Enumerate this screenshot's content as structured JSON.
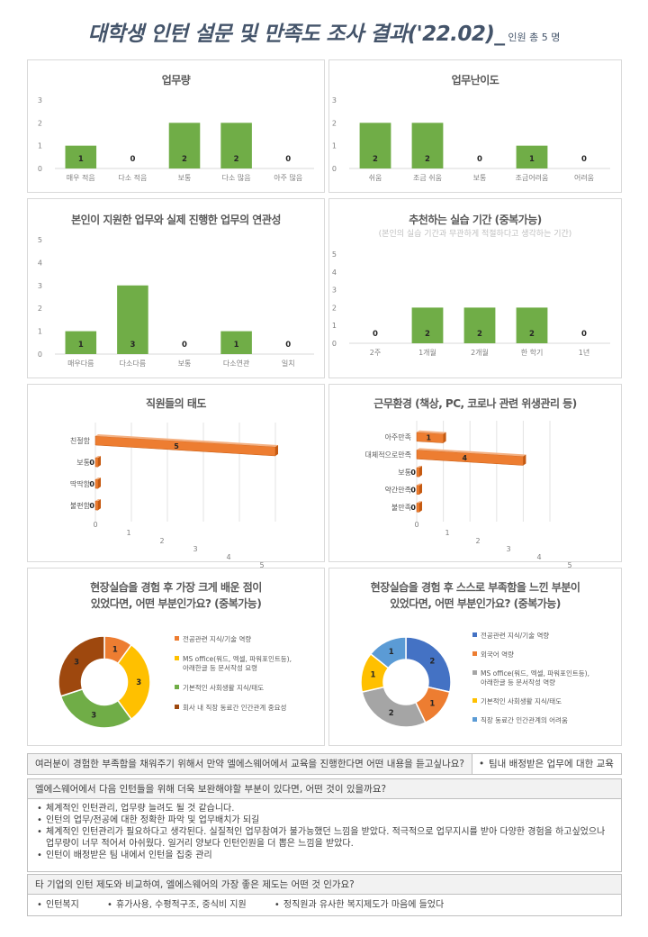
{
  "header": {
    "title": "대학생 인턴 설문 및 만족도 조사 결과('22.02)_",
    "subtitle": "인원 총 5 명"
  },
  "colors": {
    "green": "#70ad47",
    "orange": "#ed7d31",
    "gold": "#ffc000",
    "brown": "#9e480e",
    "blue": "#4472c4",
    "gray": "#a5a5a5",
    "lightblue": "#5b9bd5"
  },
  "chart_data": [
    {
      "id": "workload",
      "type": "bar",
      "title": "업무량",
      "categories": [
        "매우 적음",
        "다소 적음",
        "보통",
        "다소 많음",
        "아주 많음"
      ],
      "values": [
        1,
        0,
        2,
        2,
        0
      ],
      "ylim": [
        0,
        3
      ],
      "grid": false
    },
    {
      "id": "difficulty",
      "type": "bar",
      "title": "업무난이도",
      "categories": [
        "쉬움",
        "조금 쉬움",
        "보통",
        "조금어려움",
        "어려움"
      ],
      "values": [
        2,
        2,
        0,
        1,
        0
      ],
      "ylim": [
        0,
        3
      ],
      "grid": false
    },
    {
      "id": "relevance",
      "type": "bar",
      "title": "본인이 지원한 업무와 실제 진행한 업무의 연관성",
      "categories": [
        "매우다름",
        "다소다름",
        "보통",
        "다소연관",
        "일치"
      ],
      "values": [
        1,
        3,
        0,
        1,
        0
      ],
      "ylim": [
        0,
        5
      ],
      "grid": false
    },
    {
      "id": "period",
      "type": "bar",
      "title": "추천하는 실습 기간 (중복가능)",
      "subtitle": "(본인의 실습 기간과 무관하게 적절하다고 생각하는 기간)",
      "categories": [
        "2주",
        "1개월",
        "2개월",
        "한 학기",
        "1년"
      ],
      "values": [
        0,
        2,
        2,
        2,
        0
      ],
      "ylim": [
        0,
        5
      ],
      "grid": false
    },
    {
      "id": "attitude",
      "type": "bar",
      "orientation": "horizontal",
      "title": "직원들의 태도",
      "categories": [
        "친절함",
        "보통",
        "딱딱함",
        "불편함"
      ],
      "values": [
        5,
        0,
        0,
        0
      ],
      "xlim": [
        0,
        5
      ],
      "ticks": [
        "0",
        "1",
        "2",
        "3",
        "4",
        "5"
      ]
    },
    {
      "id": "environment",
      "type": "bar",
      "orientation": "horizontal",
      "title": "근무환경 (책상, PC, 코로나 관련 위생관리 등)",
      "categories": [
        "아주만족",
        "대체적으로만족",
        "보통",
        "약간만족",
        "불만족"
      ],
      "values": [
        1,
        4,
        0,
        0,
        0
      ],
      "xlim": [
        0,
        5
      ],
      "ticks": [
        "0",
        "1",
        "2",
        "3",
        "4",
        "5"
      ]
    },
    {
      "id": "learned",
      "type": "pie",
      "title_lines": [
        "현장실습을 경험 후 가장 크게 배운 점이",
        "있었다면, 어떤 부분인가요? (중복가능)"
      ],
      "labels": [
        "전공관련 지식/기술 역량",
        "MS office(워드, 엑셀, 파워포인트등), 아래한글 등 문서작성 요령",
        "기본적인 사회생활 지식/태도",
        "회사 내 직장 동료간 인간관계 중요성"
      ],
      "legend_lines": [
        [
          "전공관련 지식/기술 역량"
        ],
        [
          "MS office(워드, 엑셀, 파워포인트등),",
          "아래한글 등 문서작성 요령"
        ],
        [
          "기본적인 사회생활 지식/태도"
        ],
        [
          "회사 내 직장 동료간 인간관계 중요성"
        ]
      ],
      "values": [
        1,
        3,
        3,
        3
      ],
      "colors": [
        "#ed7d31",
        "#ffc000",
        "#70ad47",
        "#9e480e"
      ],
      "legend": "right"
    },
    {
      "id": "lacking",
      "type": "pie",
      "title_lines": [
        "현장실습을 경험 후 스스로 부족함을 느낀 부분이",
        "있었다면, 어떤 부분인가요? (중복가능)"
      ],
      "labels": [
        "전공관련 지식/기술 역량",
        "외국어 역량",
        "MS office(워드, 엑셀, 파워포인트등), 아래한글 등 문서작성 역량",
        "기본적인 사회생활 지식/태도",
        "직장 동료간 인간관계의 어려움"
      ],
      "legend_lines": [
        [
          "전공관련 지식/기술 역량"
        ],
        [
          "외국어 역량"
        ],
        [
          "MS office(워드, 엑셀, 파워포인트등),",
          "아래한글 등 문서작성 역량"
        ],
        [
          "기본적인 사회생활 지식/태도"
        ],
        [
          "직장 동료간 인간관계의 어려움"
        ]
      ],
      "values": [
        2,
        1,
        2,
        1,
        1
      ],
      "colors": [
        "#4472c4",
        "#ed7d31",
        "#a5a5a5",
        "#ffc000",
        "#5b9bd5"
      ],
      "legend": "right"
    }
  ],
  "questions": {
    "q1": {
      "question": "여러분이 경험한 부족함을 채워주기 위해서 만약 엘에스웨어에서 교육을 진행한다면 어떤 내용을 듣고싶나요?",
      "answer": "팀내 배정받은 업무에 대한 교육"
    },
    "q2": {
      "question": "엘에스웨어에서 다음 인턴들을 위해 더욱 보완해야할 부분이 있다면, 어떤 것이 있을까요?",
      "answers": [
        "체계적인 인턴관리, 업무량 늘려도 될 것 같습니다.",
        "인턴의 업무/전공에 대한 정확한 파악 및 업무배치가 되길",
        "체계적인 인턴관리가 필요하다고 생각된다. 실질적인 업무참여가 불가능했던 느낌을 받았다. 적극적으로 업무지시를 받아 다양한 경험을 하고싶었으나 업무량이 너무 적어서 아쉬웠다. 일거리 양보다 인턴인원을 더 뽑은 느낌을 받았다.",
        "인턴이 배정받은 팀 내에서 인턴을 집중 관리"
      ]
    },
    "q3": {
      "question": "타 기업의 인턴 제도와 비교하여, 엘에스웨어의 가장 좋은 제도는 어떤 것 인가요?",
      "answers": [
        "인턴복지",
        "휴가사용, 수평적구조, 중식비 지원",
        "정직원과 유사한 복지제도가 마음에 들었다"
      ]
    }
  }
}
